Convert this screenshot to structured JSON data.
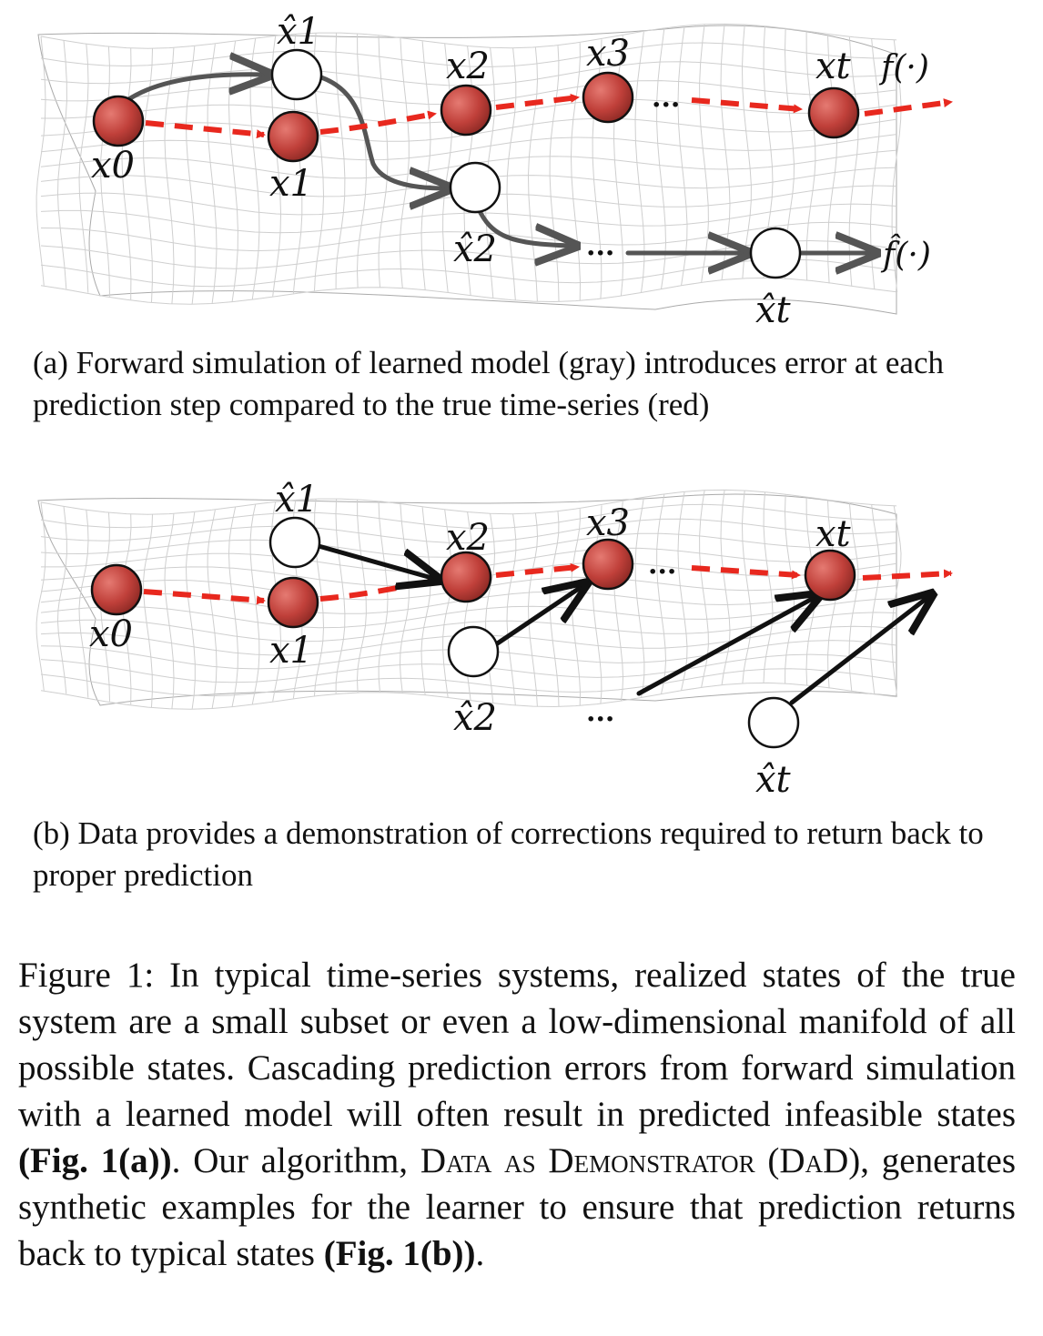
{
  "panel_a": {
    "labels": {
      "x0": "x0",
      "x1": "x1",
      "x2": "x2",
      "x3": "x3",
      "xt": "xt",
      "xhat1": "x̂1",
      "xhat2": "x̂2",
      "xhatt": "x̂t",
      "f": "f(·)",
      "fhat": "f̂(·)",
      "dots_top": "···",
      "dots_bottom": "···"
    },
    "caption": "(a) Forward simulation of learned model (gray) introduces error at each prediction step compared to the true time-series (red)"
  },
  "panel_b": {
    "labels": {
      "x0": "x0",
      "x1": "x1",
      "x2": "x2",
      "x3": "x3",
      "xt": "xt",
      "xhat1": "x̂1",
      "xhat2": "x̂2",
      "xhatt": "x̂t",
      "dots_top": "···",
      "dots_bottom": "···"
    },
    "caption": "(b) Data provides a demonstration of corrections required to return back to proper prediction"
  },
  "figure_caption": {
    "text_1": "Figure 1: In typical time-series systems, realized states of the true system are a small subset or even a low-dimensional manifold of all possible states. Cascading prediction errors from forward simulation with a learned model will often result in predicted infeasible states ",
    "ref_a": "(Fig. 1(a))",
    "text_2": ". Our algorithm, ",
    "algo_name": "Data as Demonstrator",
    "text_3": " (",
    "algo_abbr": "DaD",
    "text_4": "), generates synthetic examples for the learner to ensure that prediction returns back to typical states ",
    "ref_b": "(Fig. 1(b))",
    "text_5": "."
  },
  "colors": {
    "true_series": "#e8281e",
    "learned": "#555555",
    "correction": "#111111",
    "node_red": "#c0403a",
    "grid": "#bdbdbd"
  }
}
